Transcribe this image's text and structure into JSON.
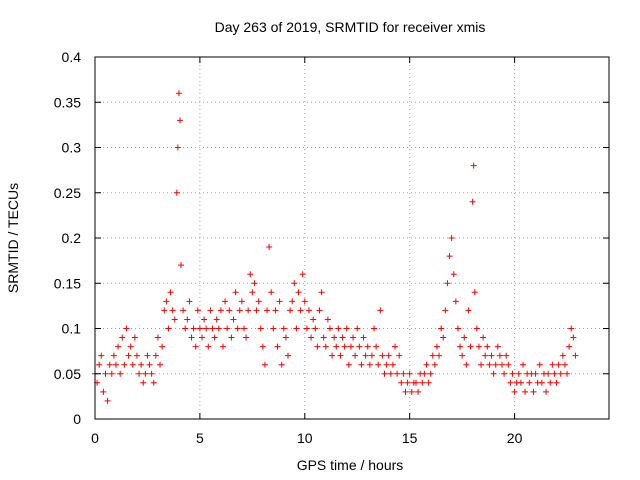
{
  "chart_data": {
    "type": "scatter",
    "title": "Day 263 of 2019, SRMTID for receiver xmis",
    "xlabel": "GPS time / hours",
    "ylabel": "SRMTID / TECUs",
    "xlim": [
      0,
      24.5
    ],
    "ylim": [
      0,
      0.4
    ],
    "xticks": [
      0,
      5,
      10,
      15,
      20
    ],
    "yticks": [
      0,
      0.05,
      0.1,
      0.15,
      0.2,
      0.25,
      0.3,
      0.35,
      0.4
    ],
    "xtick_labels": [
      "0",
      "5",
      "10",
      "15",
      "20"
    ],
    "ytick_labels": [
      "0",
      "0.05",
      "0.1",
      "0.15",
      "0.2",
      "0.25",
      "0.3",
      "0.35",
      "0.4"
    ],
    "grid": true,
    "marker": "plus",
    "color": "#ff0000",
    "series": [
      {
        "name": "SRMTID",
        "x": [
          0.0,
          0.1,
          0.2,
          0.3,
          0.4,
          0.5,
          0.6,
          0.7,
          0.8,
          0.9,
          1.0,
          1.1,
          1.2,
          1.3,
          1.4,
          1.5,
          1.6,
          1.7,
          1.8,
          1.9,
          2.0,
          2.1,
          2.2,
          2.3,
          2.4,
          2.5,
          2.6,
          2.7,
          2.8,
          2.9,
          3.0,
          3.1,
          3.2,
          3.3,
          3.4,
          3.5,
          3.6,
          3.7,
          3.8,
          3.9,
          3.95,
          4.0,
          4.05,
          4.1,
          4.2,
          4.3,
          4.4,
          4.5,
          4.6,
          4.7,
          4.8,
          4.9,
          5.0,
          5.1,
          5.2,
          5.3,
          5.4,
          5.5,
          5.6,
          5.7,
          5.8,
          5.9,
          6.0,
          6.1,
          6.2,
          6.3,
          6.4,
          6.5,
          6.6,
          6.7,
          6.8,
          6.9,
          7.0,
          7.1,
          7.2,
          7.3,
          7.4,
          7.5,
          7.6,
          7.7,
          7.8,
          7.9,
          8.0,
          8.1,
          8.2,
          8.3,
          8.4,
          8.5,
          8.6,
          8.7,
          8.8,
          8.9,
          9.0,
          9.1,
          9.2,
          9.3,
          9.4,
          9.5,
          9.6,
          9.7,
          9.8,
          9.9,
          10.0,
          10.1,
          10.2,
          10.3,
          10.4,
          10.5,
          10.6,
          10.7,
          10.8,
          10.9,
          11.0,
          11.1,
          11.2,
          11.3,
          11.4,
          11.5,
          11.6,
          11.7,
          11.8,
          11.9,
          12.0,
          12.1,
          12.2,
          12.3,
          12.4,
          12.5,
          12.6,
          12.7,
          12.8,
          12.9,
          13.0,
          13.1,
          13.2,
          13.3,
          13.4,
          13.5,
          13.6,
          13.7,
          13.8,
          13.9,
          14.0,
          14.1,
          14.2,
          14.3,
          14.4,
          14.5,
          14.6,
          14.7,
          14.8,
          14.9,
          15.0,
          15.1,
          15.2,
          15.3,
          15.4,
          15.5,
          15.6,
          15.7,
          15.8,
          15.9,
          16.0,
          16.1,
          16.2,
          16.3,
          16.4,
          16.5,
          16.6,
          16.7,
          16.8,
          16.9,
          17.0,
          17.1,
          17.2,
          17.3,
          17.4,
          17.5,
          17.6,
          17.7,
          17.8,
          17.9,
          18.0,
          18.05,
          18.1,
          18.2,
          18.3,
          18.4,
          18.5,
          18.6,
          18.7,
          18.8,
          18.9,
          19.0,
          19.1,
          19.2,
          19.3,
          19.4,
          19.5,
          19.6,
          19.7,
          19.8,
          19.9,
          20.0,
          20.1,
          20.2,
          20.3,
          20.4,
          20.5,
          20.6,
          20.7,
          20.8,
          20.9,
          21.0,
          21.1,
          21.2,
          21.3,
          21.4,
          21.5,
          21.6,
          21.7,
          21.8,
          21.9,
          22.0,
          22.1,
          22.2,
          22.3,
          22.4,
          22.5,
          22.6,
          22.7,
          22.8,
          22.9
        ],
        "y": [
          0.05,
          0.04,
          0.06,
          0.07,
          0.03,
          0.05,
          0.02,
          0.06,
          0.05,
          0.07,
          0.06,
          0.08,
          0.05,
          0.09,
          0.06,
          0.1,
          0.07,
          0.08,
          0.06,
          0.09,
          0.07,
          0.05,
          0.06,
          0.04,
          0.05,
          0.07,
          0.06,
          0.05,
          0.04,
          0.07,
          0.09,
          0.06,
          0.08,
          0.12,
          0.13,
          0.1,
          0.14,
          0.12,
          0.11,
          0.25,
          0.3,
          0.36,
          0.33,
          0.17,
          0.12,
          0.1,
          0.11,
          0.13,
          0.09,
          0.1,
          0.08,
          0.12,
          0.1,
          0.09,
          0.11,
          0.1,
          0.08,
          0.12,
          0.1,
          0.09,
          0.11,
          0.1,
          0.12,
          0.08,
          0.13,
          0.1,
          0.12,
          0.09,
          0.11,
          0.14,
          0.1,
          0.12,
          0.13,
          0.1,
          0.09,
          0.12,
          0.16,
          0.14,
          0.15,
          0.12,
          0.13,
          0.1,
          0.08,
          0.06,
          0.12,
          0.19,
          0.14,
          0.1,
          0.12,
          0.08,
          0.13,
          0.06,
          0.1,
          0.09,
          0.07,
          0.12,
          0.13,
          0.15,
          0.1,
          0.14,
          0.12,
          0.16,
          0.13,
          0.1,
          0.12,
          0.09,
          0.11,
          0.1,
          0.08,
          0.12,
          0.14,
          0.09,
          0.08,
          0.11,
          0.1,
          0.07,
          0.09,
          0.08,
          0.1,
          0.07,
          0.09,
          0.08,
          0.1,
          0.06,
          0.08,
          0.09,
          0.07,
          0.1,
          0.08,
          0.06,
          0.09,
          0.07,
          0.08,
          0.06,
          0.07,
          0.1,
          0.08,
          0.06,
          0.12,
          0.07,
          0.05,
          0.06,
          0.07,
          0.05,
          0.06,
          0.08,
          0.05,
          0.07,
          0.04,
          0.05,
          0.03,
          0.04,
          0.05,
          0.03,
          0.04,
          0.04,
          0.03,
          0.05,
          0.04,
          0.05,
          0.06,
          0.04,
          0.05,
          0.07,
          0.06,
          0.08,
          0.07,
          0.1,
          0.09,
          0.12,
          0.15,
          0.18,
          0.2,
          0.16,
          0.13,
          0.1,
          0.08,
          0.07,
          0.09,
          0.06,
          0.12,
          0.08,
          0.24,
          0.28,
          0.14,
          0.1,
          0.08,
          0.06,
          0.09,
          0.07,
          0.08,
          0.06,
          0.07,
          0.05,
          0.06,
          0.08,
          0.07,
          0.06,
          0.05,
          0.07,
          0.06,
          0.04,
          0.05,
          0.03,
          0.04,
          0.05,
          0.04,
          0.06,
          0.03,
          0.05,
          0.04,
          0.05,
          0.03,
          0.05,
          0.04,
          0.06,
          0.04,
          0.05,
          0.03,
          0.05,
          0.04,
          0.06,
          0.05,
          0.04,
          0.06,
          0.05,
          0.07,
          0.06,
          0.05,
          0.08,
          0.1,
          0.09,
          0.07
        ]
      }
    ]
  }
}
